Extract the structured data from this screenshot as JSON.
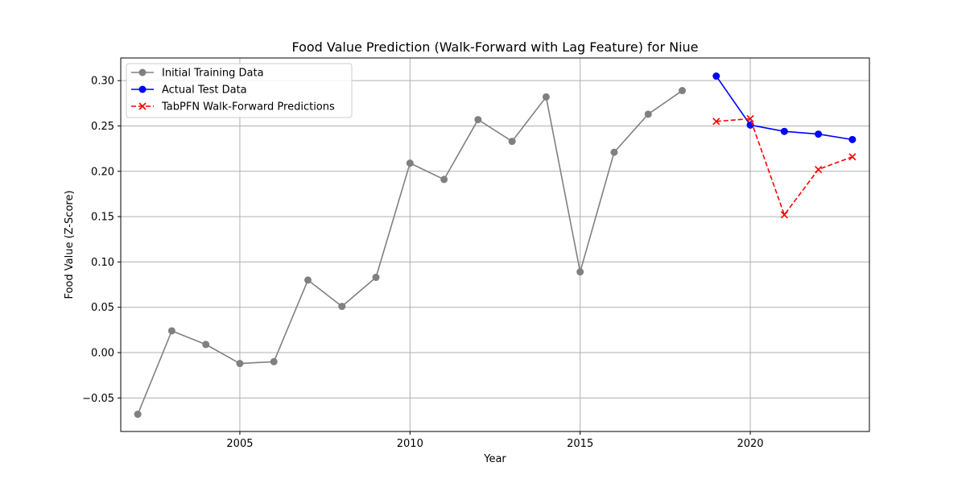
{
  "chart_data": {
    "type": "line",
    "title": "Food Value Prediction (Walk-Forward with Lag Feature) for Niue",
    "xlabel": "Year",
    "ylabel": "Food Value (Z-Score)",
    "xlim": [
      2001.5,
      2023.5
    ],
    "ylim": [
      -0.087,
      0.325
    ],
    "xticks": [
      2005,
      2010,
      2015,
      2020
    ],
    "xtick_labels": [
      "2005",
      "2010",
      "2015",
      "2020"
    ],
    "yticks": [
      -0.05,
      0.0,
      0.05,
      0.1,
      0.15,
      0.2,
      0.25,
      0.3
    ],
    "ytick_labels": [
      "−0.05",
      "0.00",
      "0.05",
      "0.10",
      "0.15",
      "0.20",
      "0.25",
      "0.30"
    ],
    "grid": true,
    "legend_position": "upper-left",
    "series": [
      {
        "name": "Initial Training Data",
        "color": "#808080",
        "marker": "circle",
        "linestyle": "solid",
        "x": [
          2002,
          2003,
          2004,
          2005,
          2006,
          2007,
          2008,
          2009,
          2010,
          2011,
          2012,
          2013,
          2014,
          2015,
          2016,
          2017,
          2018
        ],
        "y": [
          -0.068,
          0.024,
          0.009,
          -0.012,
          -0.01,
          0.08,
          0.051,
          0.083,
          0.209,
          0.191,
          0.257,
          0.233,
          0.282,
          0.089,
          0.221,
          0.263,
          0.289
        ]
      },
      {
        "name": "Actual Test Data",
        "color": "#0000ff",
        "marker": "circle",
        "linestyle": "solid",
        "x": [
          2019,
          2020,
          2021,
          2022,
          2023
        ],
        "y": [
          0.305,
          0.251,
          0.244,
          0.241,
          0.235
        ]
      },
      {
        "name": "TabPFN Walk-Forward Predictions",
        "color": "#ff0000",
        "marker": "x",
        "linestyle": "dashed",
        "x": [
          2019,
          2020,
          2021,
          2022,
          2023
        ],
        "y": [
          0.255,
          0.258,
          0.152,
          0.202,
          0.216
        ]
      }
    ]
  }
}
